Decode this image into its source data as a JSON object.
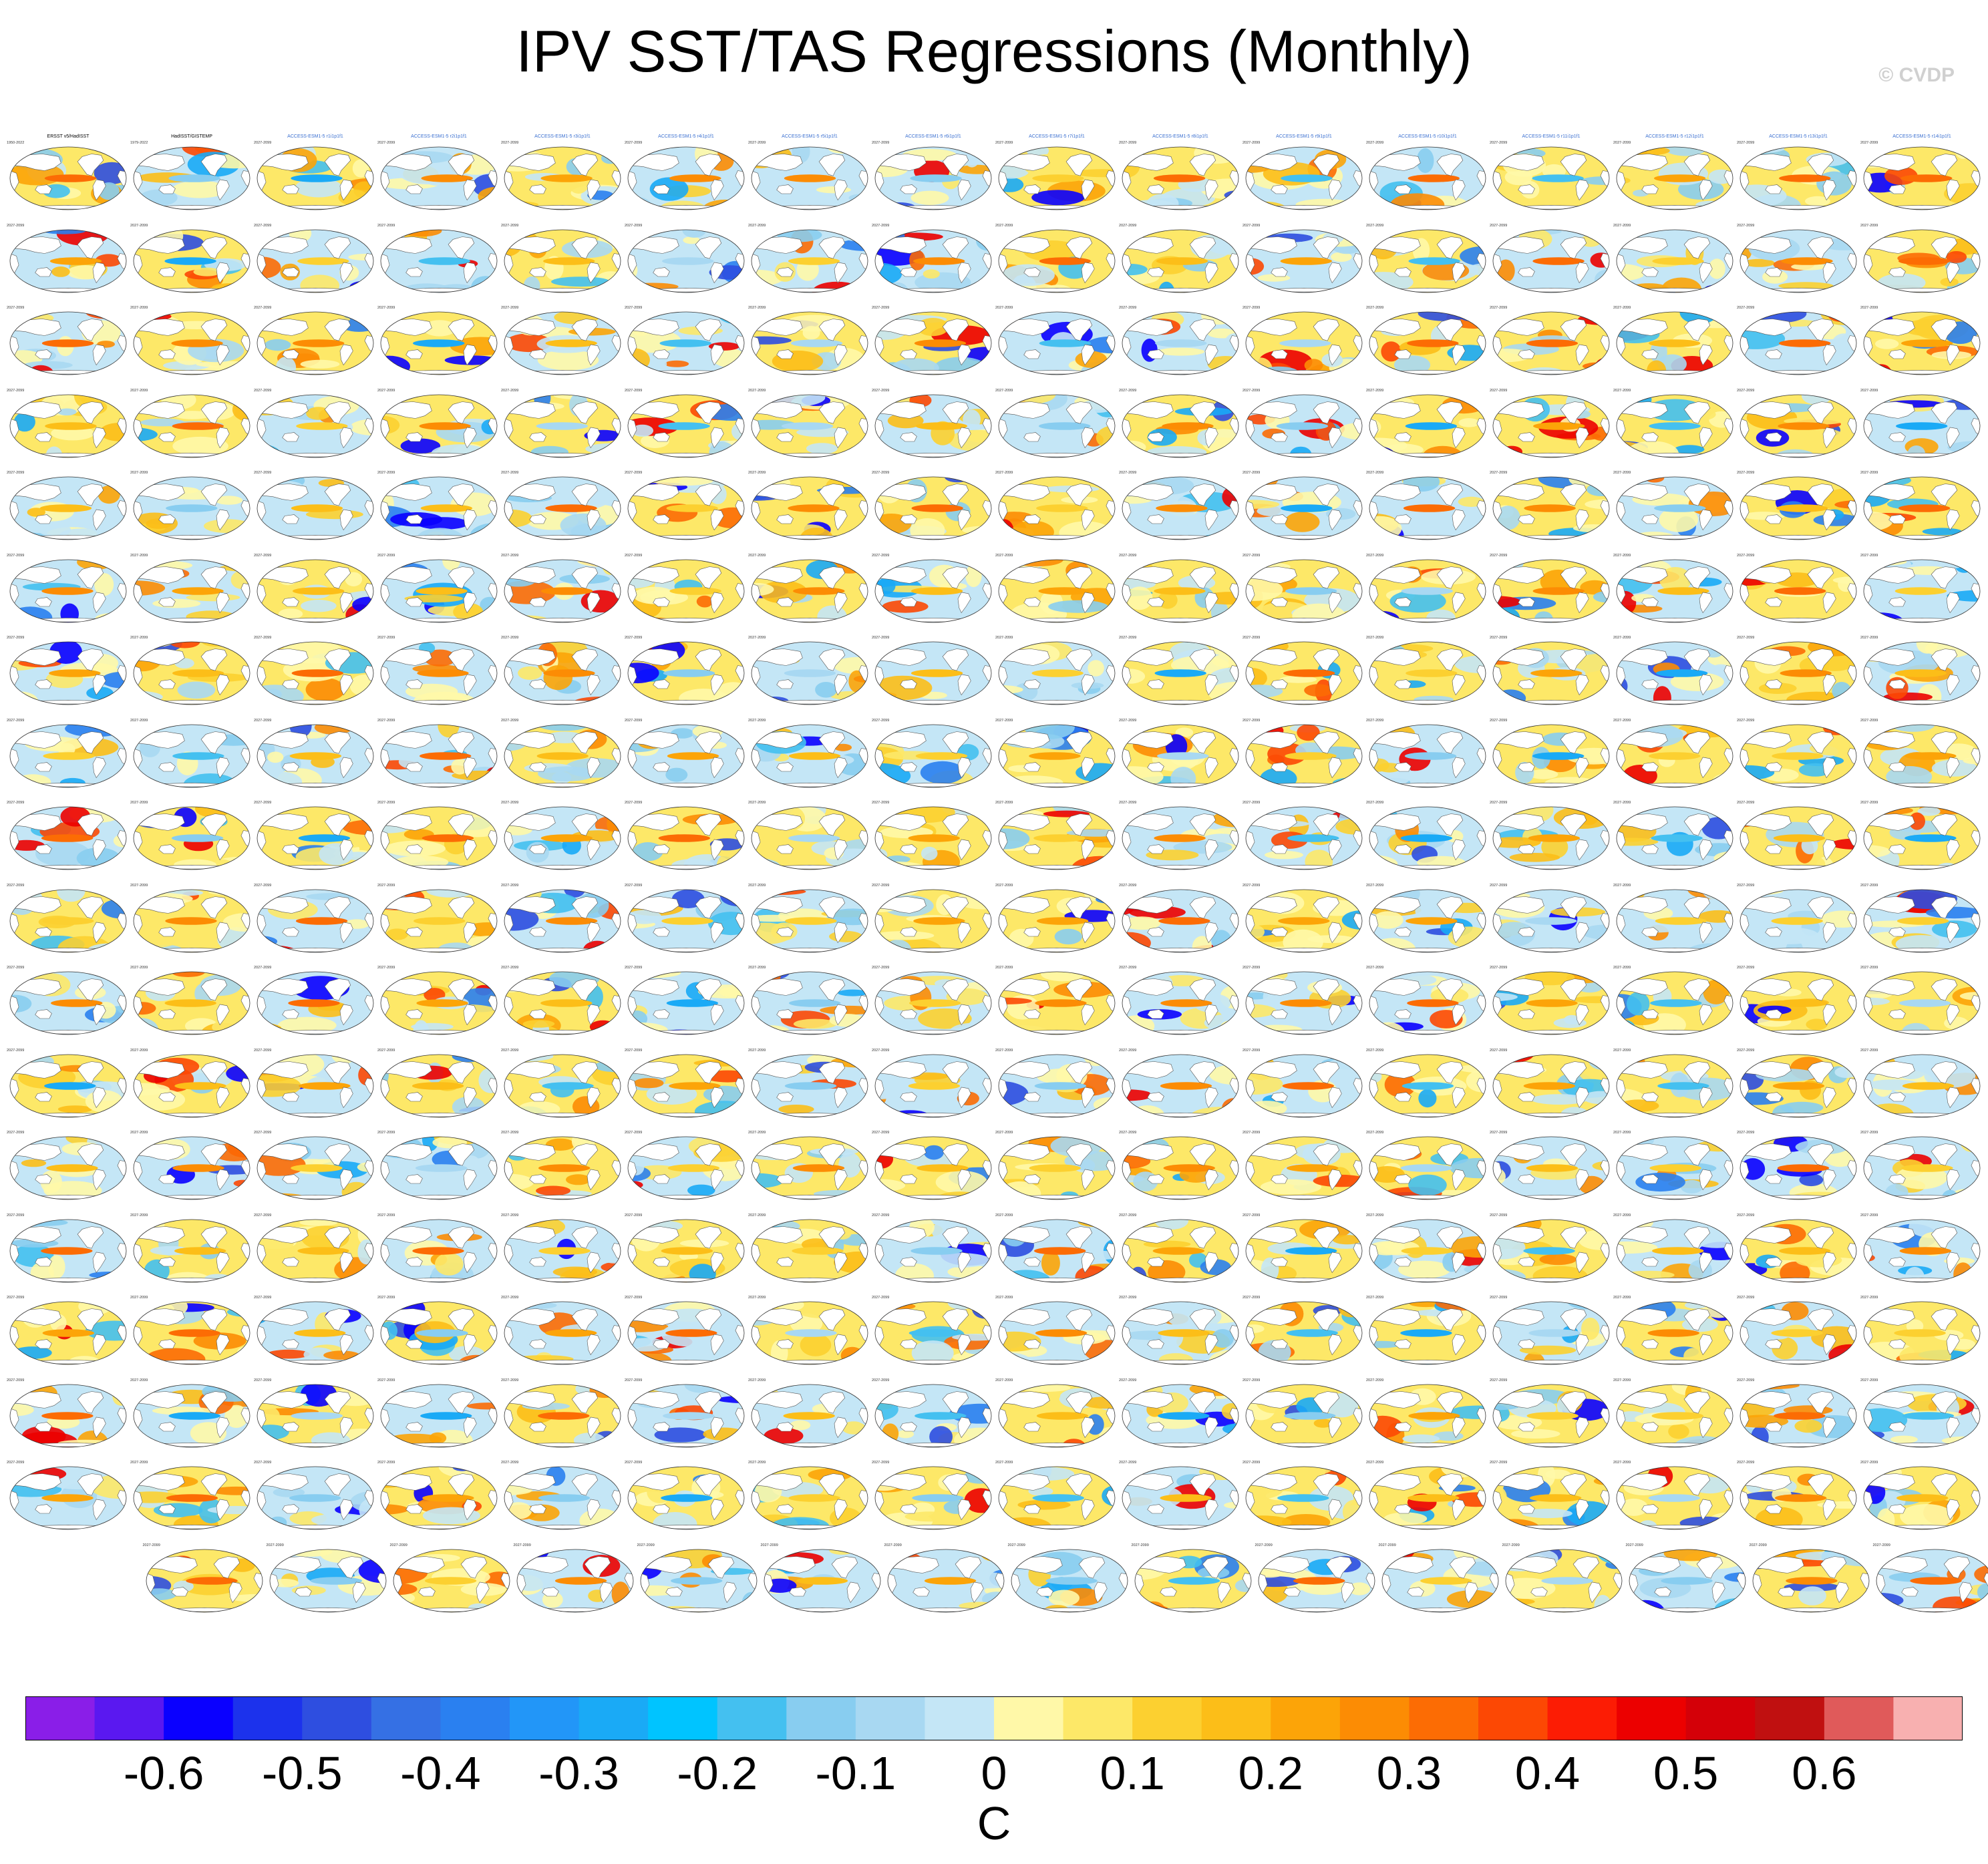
{
  "chart_data": {
    "type": "heatmap",
    "title": "IPV SST/TAS Regressions (Monthly)",
    "watermark": "© CVDP",
    "colorbar": {
      "unit": "C",
      "tick_labels": [
        "-0.6",
        "-0.5",
        "-0.4",
        "-0.3",
        "-0.2",
        "-0.1",
        "0",
        "0.1",
        "0.2",
        "0.3",
        "0.4",
        "0.5",
        "0.6"
      ],
      "tick_values": [
        -0.6,
        -0.5,
        -0.4,
        -0.3,
        -0.2,
        -0.1,
        0,
        0.1,
        0.2,
        0.3,
        0.4,
        0.5,
        0.6
      ],
      "range": [
        -0.7,
        0.7
      ],
      "colors": [
        "#8a1ee8",
        "#5a18f0",
        "#0a00ff",
        "#1c32ec",
        "#2e4ee0",
        "#3570e4",
        "#2a80f0",
        "#2296f8",
        "#1aaaf6",
        "#00c4ff",
        "#44c0f0",
        "#88cdf0",
        "#a8d8f2",
        "#c4e6f6",
        "#fff8a8",
        "#fde868",
        "#fcd030",
        "#fcbe18",
        "#fca408",
        "#fc8c04",
        "#fc6c04",
        "#fc4804",
        "#fc1c04",
        "#ec0000",
        "#d40008",
        "#c01010",
        "#e05a5a",
        "#f8b0b0"
      ]
    },
    "panel_grid": {
      "rows": 18,
      "columns": 16,
      "last_row_panels": 15,
      "total_panels": 287,
      "projection": "robinson",
      "panel_titles": [
        "ERSST v5/HadISST",
        "HadISST/GISTEMP",
        "ACCESS-ESM1-5 r1i1p1f1",
        "ACCESS-ESM1-5 r2i1p1f1",
        "ACCESS-ESM1-5 r3i1p1f1",
        "ACCESS-ESM1-5 r4i1p1f1",
        "ACCESS-ESM1-5 r5i1p1f1",
        "ACCESS-ESM1-5 r6i1p1f1",
        "ACCESS-ESM1-5 r7i1p1f1",
        "ACCESS-ESM1-5 r8i1p1f1",
        "ACCESS-ESM1-5 r9i1p1f1",
        "ACCESS-ESM1-5 r10i1p1f1",
        "ACCESS-ESM1-5 r11i1p1f1",
        "ACCESS-ESM1-5 r12i1p1f1",
        "ACCESS-ESM1-5 r13i1p1f1",
        "ACCESS-ESM1-5 r14i1p1f1"
      ],
      "panel_years": [
        "1950-2022",
        "1979-2022",
        "2027-2099"
      ]
    }
  }
}
